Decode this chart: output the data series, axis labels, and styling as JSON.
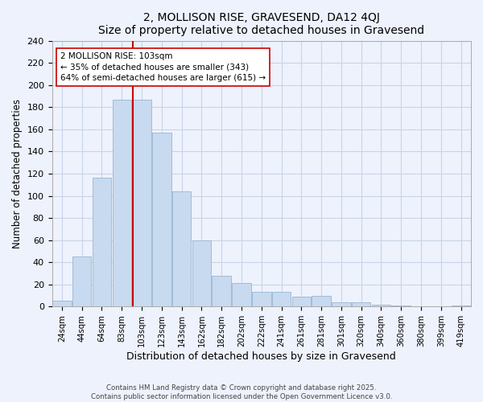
{
  "title": "2, MOLLISON RISE, GRAVESEND, DA12 4QJ",
  "subtitle": "Size of property relative to detached houses in Gravesend",
  "xlabel": "Distribution of detached houses by size in Gravesend",
  "ylabel": "Number of detached properties",
  "bar_labels": [
    "24sqm",
    "44sqm",
    "64sqm",
    "83sqm",
    "103sqm",
    "123sqm",
    "143sqm",
    "162sqm",
    "182sqm",
    "202sqm",
    "222sqm",
    "241sqm",
    "261sqm",
    "281sqm",
    "301sqm",
    "320sqm",
    "340sqm",
    "360sqm",
    "380sqm",
    "399sqm",
    "419sqm"
  ],
  "bar_values": [
    5,
    45,
    116,
    187,
    187,
    157,
    104,
    60,
    28,
    21,
    13,
    13,
    9,
    10,
    4,
    4,
    2,
    1,
    0,
    0,
    1
  ],
  "bar_color": "#c8daf0",
  "bar_edgecolor": "#a0bcd8",
  "vline_color": "#cc0000",
  "annotation_text": "2 MOLLISON RISE: 103sqm\n← 35% of detached houses are smaller (343)\n64% of semi-detached houses are larger (615) →",
  "annotation_box_edgecolor": "#cc0000",
  "annotation_box_facecolor": "#ffffff",
  "ylim": [
    0,
    240
  ],
  "yticks": [
    0,
    20,
    40,
    60,
    80,
    100,
    120,
    140,
    160,
    180,
    200,
    220,
    240
  ],
  "footer_line1": "Contains HM Land Registry data © Crown copyright and database right 2025.",
  "footer_line2": "Contains public sector information licensed under the Open Government Licence v3.0.",
  "bg_color": "#eef2fc",
  "grid_color": "#c8d4e8"
}
